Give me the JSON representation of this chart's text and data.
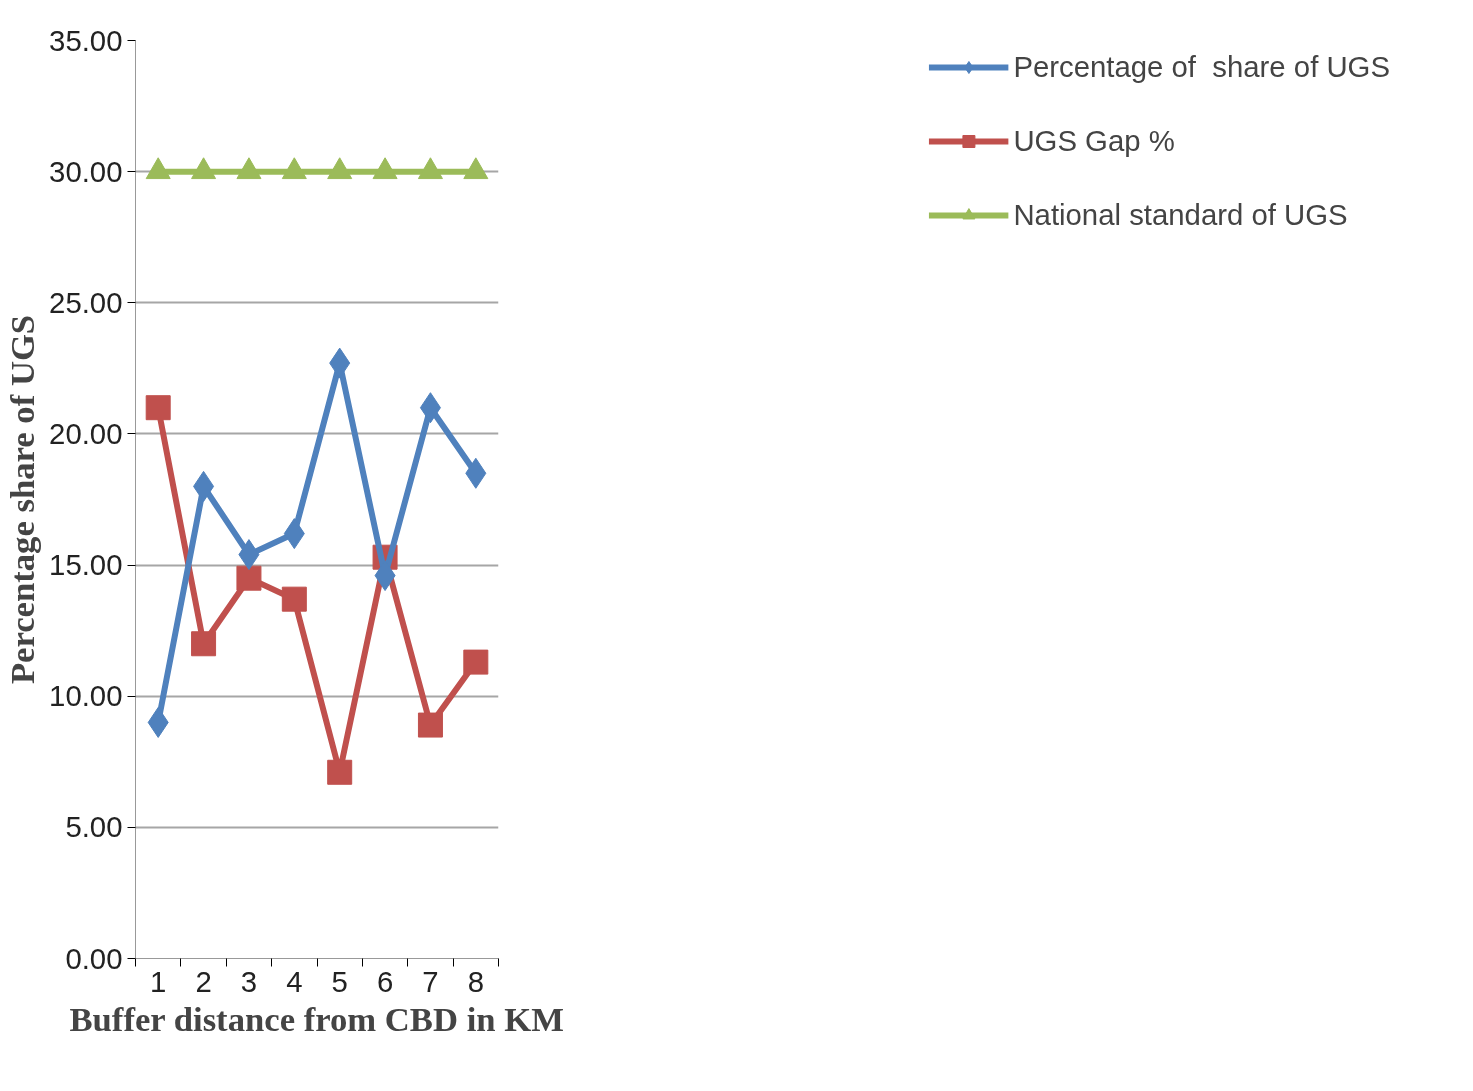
{
  "chart_data": {
    "type": "line",
    "xlabel": "Buffer distance from CBD in KM",
    "ylabel": "Percentage share of UGS",
    "categories": [
      "1",
      "2",
      "3",
      "4",
      "5",
      "6",
      "7",
      "8"
    ],
    "series": [
      {
        "name": "Percentage of  share of UGS",
        "color": "#4f81bd",
        "marker": "diamond",
        "values": [
          9.0,
          18.0,
          15.4,
          16.2,
          22.7,
          14.6,
          21.0,
          18.5
        ]
      },
      {
        "name": "UGS Gap %",
        "color": "#c0504d",
        "marker": "square",
        "values": [
          21.0,
          12.0,
          14.5,
          13.7,
          7.1,
          15.3,
          8.9,
          11.3
        ]
      },
      {
        "name": "National standard of UGS",
        "color": "#9bbb59",
        "marker": "triangle",
        "values": [
          30,
          30,
          30,
          30,
          30,
          30,
          30,
          30
        ]
      }
    ],
    "ylim": [
      0,
      35
    ],
    "yticks": [
      {
        "value": 0,
        "label": "0.00"
      },
      {
        "value": 5,
        "label": "5.00"
      },
      {
        "value": 10,
        "label": "10.00"
      },
      {
        "value": 15,
        "label": "15.00"
      },
      {
        "value": 20,
        "label": "20.00"
      },
      {
        "value": 25,
        "label": "25.00"
      },
      {
        "value": 30,
        "label": "30.00"
      },
      {
        "value": 35,
        "label": "35.00"
      }
    ],
    "grid": "y",
    "legend": "right",
    "line_style": "solid"
  }
}
